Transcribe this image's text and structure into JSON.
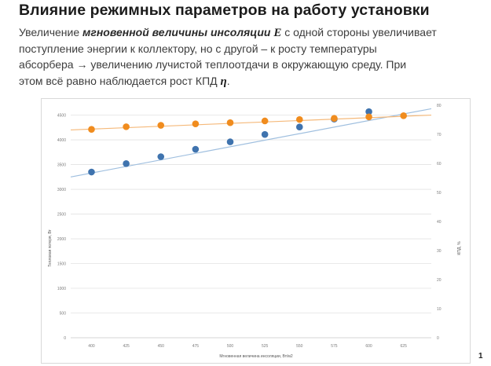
{
  "slide": {
    "title": "Влияние режимных параметров на работу установки",
    "para": {
      "l1_a": "Увеличение ",
      "l1_em": "мгновенной величины инсоляции",
      "l1_sym": "E",
      "l1_b": " с одной стороны увеличивает",
      "l2": "поступление энергии к коллектору, но с другой – к росту температуры",
      "l3_a": "абсорбера ",
      "l3_arrow": "→",
      "l3_b": " увеличению лучистой теплоотдачи в окружающую среду. При",
      "l4_a": "этом всё равно наблюдается рост КПД ",
      "l4_sym": "η",
      "l4_b": "."
    },
    "page_number": "1"
  },
  "chart_data": {
    "type": "scatter",
    "xlabel": "Мгновенная величина инсоляции, Вт/м2",
    "ylabel": "Тепловая потеря, Вт",
    "y2label": "КПД, %",
    "x_ticks": [
      400,
      425,
      450,
      475,
      500,
      525,
      550,
      575,
      600,
      625
    ],
    "xlim": [
      385,
      645
    ],
    "ylim": [
      0,
      4700
    ],
    "y_ticks": [
      0,
      500,
      1000,
      1500,
      2000,
      2500,
      3000,
      3500,
      4000,
      4500
    ],
    "y2lim": [
      0,
      80
    ],
    "y2_ticks": [
      0,
      10,
      20,
      30,
      40,
      50,
      60,
      70,
      80
    ],
    "grid": "horizontal",
    "series": [
      {
        "axis": "left",
        "color": "#3f73ae",
        "line_color": "#9fbfdf",
        "x": [
          400,
          425,
          450,
          475,
          500,
          525,
          550,
          575,
          600
        ],
        "values": [
          3350,
          3520,
          3660,
          3810,
          3960,
          4110,
          4260,
          4420,
          4570
        ],
        "trend": [
          [
            385,
            3250
          ],
          [
            645,
            4630
          ]
        ]
      },
      {
        "axis": "right",
        "color": "#f08c1e",
        "line_color": "#f5b97a",
        "x": [
          400,
          425,
          450,
          475,
          500,
          525,
          550,
          575,
          600,
          625
        ],
        "values": [
          71.7,
          72.6,
          73.1,
          73.6,
          74.0,
          74.6,
          75.1,
          75.5,
          76.0,
          76.4
        ],
        "trend": [
          [
            385,
            71.5
          ],
          [
            645,
            76.6
          ]
        ]
      }
    ]
  }
}
